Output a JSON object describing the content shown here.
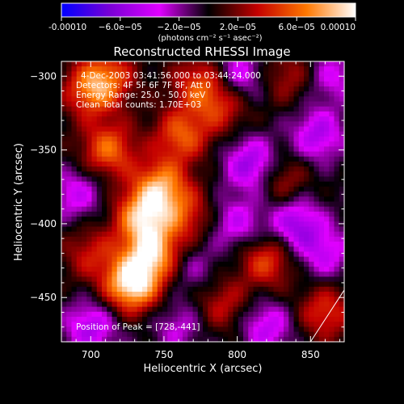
{
  "chart_data": {
    "type": "heatmap",
    "title": "Reconstructed RHESSI Image",
    "xlabel": "Heliocentric X (arcsec)",
    "ylabel": "Heliocentric Y (arcsec)",
    "xlim": [
      680,
      873
    ],
    "ylim": [
      -480,
      -290
    ],
    "x_ticks": [
      700,
      750,
      800,
      850
    ],
    "y_ticks": [
      -300,
      -350,
      -400,
      -450
    ],
    "colorbar": {
      "vmin": -0.0001,
      "vmax": 0.0001,
      "ticks": [
        {
          "value": -0.0001,
          "label": "-0.00010"
        },
        {
          "value": -6e-05,
          "label": "−6.0e−05"
        },
        {
          "value": -2e-05,
          "label": "−2.0e−05"
        },
        {
          "value": 2e-05,
          "label": "2.0e−05"
        },
        {
          "value": 6e-05,
          "label": "6.0e−05"
        },
        {
          "value": 0.0001,
          "label": "0.00010"
        }
      ],
      "unit_label": "(photons cm⁻² s⁻¹ asec⁻²)",
      "colors": [
        "#0000ff",
        "#7a00d6",
        "#e000ff",
        "#000000",
        "#c40000",
        "#ff7800",
        "#ffffff"
      ]
    },
    "annotations": {
      "time_range": "4-Dec-2003 03:41:56.000 to 03:44:24.000",
      "detectors": "Detectors: 4F 5F 6F 7F 8F, Att 0",
      "energy": "Energy Range: 25.0 - 50.0 keV",
      "clean": "Clean     Total counts: 1.70E+03",
      "peak": "Position of Peak = [728,-441]"
    },
    "peak": {
      "x": 728,
      "y": -441
    },
    "sources": [
      {
        "x": 728,
        "y": -441,
        "v": 1.0
      },
      {
        "x": 742,
        "y": -420,
        "v": 0.8
      },
      {
        "x": 735,
        "y": -395,
        "v": 0.75
      },
      {
        "x": 748,
        "y": -375,
        "v": 0.7
      },
      {
        "x": 712,
        "y": -350,
        "v": 0.6
      },
      {
        "x": 700,
        "y": -310,
        "v": 0.55
      },
      {
        "x": 762,
        "y": -340,
        "v": 0.55
      },
      {
        "x": 775,
        "y": -305,
        "v": 0.5
      },
      {
        "x": 790,
        "y": -320,
        "v": 0.4
      },
      {
        "x": 712,
        "y": -300,
        "v": 0.45
      },
      {
        "x": 820,
        "y": -425,
        "v": 0.5
      },
      {
        "x": 860,
        "y": -460,
        "v": 0.45
      },
      {
        "x": 830,
        "y": -370,
        "v": 0.35
      },
      {
        "x": 790,
        "y": -455,
        "v": 0.35
      },
      {
        "x": 835,
        "y": -300,
        "v": 0.3
      },
      {
        "x": 700,
        "y": -420,
        "v": 0.35
      },
      {
        "x": 765,
        "y": -395,
        "v": 0.4
      },
      {
        "x": 770,
        "y": -430,
        "v": -0.25
      },
      {
        "x": 810,
        "y": -360,
        "v": -0.6
      },
      {
        "x": 840,
        "y": -400,
        "v": -0.55
      },
      {
        "x": 855,
        "y": -340,
        "v": -0.5
      },
      {
        "x": 800,
        "y": -300,
        "v": -0.45
      },
      {
        "x": 700,
        "y": -470,
        "v": -0.5
      },
      {
        "x": 820,
        "y": -470,
        "v": -0.45
      },
      {
        "x": 690,
        "y": -380,
        "v": -0.4
      },
      {
        "x": 800,
        "y": -400,
        "v": -0.4
      },
      {
        "x": 865,
        "y": -300,
        "v": -0.35
      },
      {
        "x": 760,
        "y": -470,
        "v": -0.3
      },
      {
        "x": 860,
        "y": -420,
        "v": -0.4
      }
    ],
    "limb_line": [
      [
        850,
        -480
      ],
      [
        873,
        -445
      ]
    ]
  }
}
